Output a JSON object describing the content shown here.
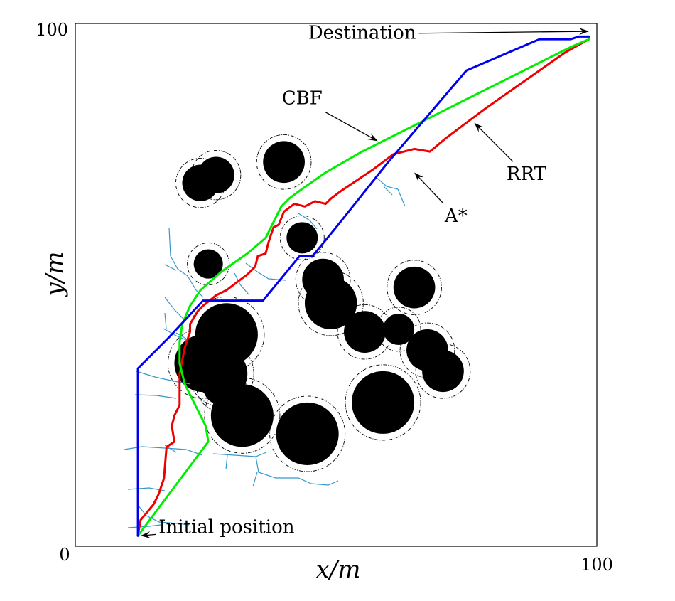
{
  "chart_data": {
    "type": "line",
    "xlabel": "x/m",
    "ylabel": "y/m",
    "xlim": [
      0,
      100
    ],
    "ylim": [
      0,
      100
    ],
    "x_tick_labels": [
      "0",
      "100"
    ],
    "y_tick_labels": [
      "100"
    ],
    "grid": false,
    "colors": {
      "CBF": "#00ee00",
      "RRT": "#ee0000",
      "A*": "#0000ee",
      "tree": "#3399cc",
      "obstacle": "#000000"
    },
    "series": [
      {
        "name": "CBF",
        "x": [
          12,
          15,
          18,
          21,
          24,
          25.5,
          25,
          23,
          21,
          20,
          20,
          20.5,
          22,
          24,
          28,
          33,
          36.5,
          38,
          39.5,
          41,
          43,
          48,
          55,
          63,
          71,
          80,
          89,
          95,
          98.5
        ],
        "y": [
          2,
          6,
          10,
          14,
          18,
          20,
          23,
          27,
          31,
          35,
          39,
          42.5,
          46,
          49,
          52.5,
          56,
          59,
          62,
          65,
          66.5,
          68,
          71.5,
          75.5,
          79.5,
          83.5,
          88,
          92.5,
          95.5,
          97
        ]
      },
      {
        "name": "RRT",
        "x": [
          12,
          12.5,
          15,
          16,
          17,
          17.5,
          19,
          18.5,
          19,
          20,
          20,
          21,
          22,
          22,
          23.5,
          24.5,
          27,
          29,
          31,
          33,
          34.5,
          35,
          36.5,
          37,
          38,
          39,
          40,
          42,
          44,
          46,
          48,
          49,
          51,
          54,
          57,
          61,
          65,
          68,
          71,
          75,
          79,
          84,
          89,
          94,
          98.5
        ],
        "y": [
          2,
          5,
          8,
          10,
          13,
          19,
          20,
          23,
          25,
          27,
          33,
          38,
          41,
          42.5,
          45,
          46,
          48,
          49,
          50.5,
          52,
          53.5,
          55.5,
          56,
          58,
          61,
          61.5,
          64,
          65.5,
          65,
          66,
          65.5,
          66.5,
          68,
          70,
          72,
          75,
          76,
          75.5,
          78,
          81,
          84,
          87.5,
          91,
          94.5,
          97
        ]
      },
      {
        "name": "A*",
        "x": [
          12,
          12,
          18,
          24.5,
          36,
          43,
          45.5,
          50,
          60,
          75,
          89,
          95,
          96.5,
          98.5
        ],
        "y": [
          2,
          34,
          40,
          47,
          47,
          55.5,
          55.5,
          61,
          73.5,
          91,
          97,
          97,
          97.5,
          97.5
        ]
      }
    ],
    "obstacles": [
      {
        "x": 24,
        "y": 69.5,
        "r": 3.5
      },
      {
        "x": 27,
        "y": 71,
        "r": 3.5
      },
      {
        "x": 40,
        "y": 73.5,
        "r": 4.0
      },
      {
        "x": 43.5,
        "y": 59,
        "r": 3.0
      },
      {
        "x": 25.5,
        "y": 54,
        "r": 2.8
      },
      {
        "x": 29,
        "y": 40.5,
        "r": 6.0
      },
      {
        "x": 24.5,
        "y": 35,
        "r": 5.5
      },
      {
        "x": 28,
        "y": 33,
        "r": 5.0
      },
      {
        "x": 28,
        "y": 30.5,
        "r": 3.5
      },
      {
        "x": 32,
        "y": 25,
        "r": 6.0
      },
      {
        "x": 44.5,
        "y": 21.5,
        "r": 6.0
      },
      {
        "x": 47.5,
        "y": 51,
        "r": 4.0
      },
      {
        "x": 49,
        "y": 46.5,
        "r": 5.0
      },
      {
        "x": 55.5,
        "y": 41,
        "r": 4.0
      },
      {
        "x": 59,
        "y": 27.5,
        "r": 6.0
      },
      {
        "x": 62,
        "y": 41.5,
        "r": 3.0
      },
      {
        "x": 65,
        "y": 49.5,
        "r": 4.0
      },
      {
        "x": 67.5,
        "y": 37.5,
        "r": 4.0
      },
      {
        "x": 70.5,
        "y": 33.5,
        "r": 4.0
      }
    ],
    "annotations": [
      {
        "text": "Destination",
        "text_x": 55,
        "text_y": 98,
        "point_x": 98.5,
        "point_y": 98.5
      },
      {
        "text": "CBF",
        "text_x": 43.5,
        "text_y": 85.5,
        "point_x": 58,
        "point_y": 77.5
      },
      {
        "text": "RRT",
        "text_x": 86.5,
        "text_y": 71,
        "point_x": 76.5,
        "point_y": 81
      },
      {
        "text": "A*",
        "text_x": 73,
        "text_y": 63,
        "point_x": 65,
        "point_y": 71.5
      },
      {
        "text": "Initial position",
        "text_x": 29,
        "text_y": 3.5,
        "point_x": 12.5,
        "point_y": 2
      }
    ]
  }
}
